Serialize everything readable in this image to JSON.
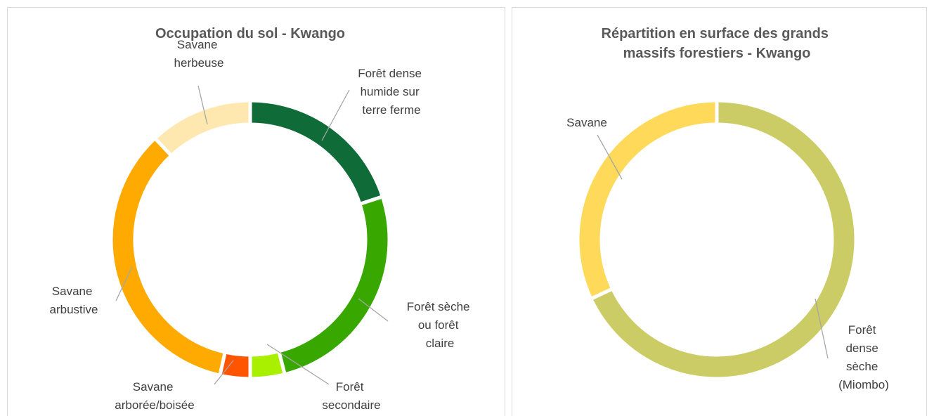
{
  "chart_data": [
    {
      "type": "donut",
      "title": "Occupation du sol - Kwango",
      "categories": [
        "Forêt dense humide sur terre ferme",
        "Forêt sèche ou forêt claire",
        "Forêt secondaire",
        "Savane arborée/boisée",
        "Savane arbustive",
        "Savane herbeuse"
      ],
      "values": [
        20,
        26,
        4,
        3.5,
        34.5,
        12
      ],
      "colors": [
        "#0f6b38",
        "#38a800",
        "#a8f000",
        "#ff5500",
        "#ffaa00",
        "#ffe8b0"
      ]
    },
    {
      "type": "donut",
      "title": "Répartition en surface des grands massifs forestiers - Kwango",
      "categories": [
        "Forêt dense sèche (Miombo)",
        "Savane"
      ],
      "values": [
        68,
        32
      ],
      "colors": [
        "#cccc66",
        "#ffd95a"
      ]
    }
  ]
}
